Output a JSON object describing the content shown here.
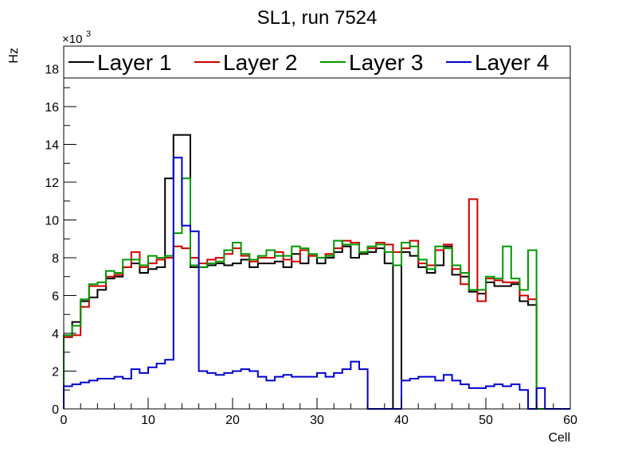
{
  "chart_data": {
    "type": "line",
    "style": "step-histogram",
    "title": "SL1, run 7524",
    "xlabel": "Cell",
    "ylabel": "Hz",
    "y_multiplier": "×10",
    "y_multiplier_exp": "3",
    "xlim": [
      0,
      60
    ],
    "ylim": [
      0,
      19.2
    ],
    "x_ticks": [
      0,
      10,
      20,
      30,
      40,
      50,
      60
    ],
    "y_ticks": [
      0,
      2,
      4,
      6,
      8,
      10,
      12,
      14,
      16,
      18
    ],
    "grid": false,
    "legend_position": "top",
    "bin_edges_start": 0,
    "bin_width": 1,
    "series": [
      {
        "name": "Layer 1",
        "color": "#000000",
        "values": [
          3.8,
          4.6,
          5.7,
          5.9,
          6.3,
          6.9,
          7.0,
          7.5,
          7.7,
          7.2,
          7.4,
          7.5,
          12.2,
          14.5,
          14.5,
          7.5,
          7.5,
          7.6,
          7.7,
          7.6,
          7.7,
          7.9,
          7.5,
          7.7,
          7.7,
          7.8,
          7.5,
          8.2,
          7.7,
          8.1,
          7.7,
          8.0,
          8.3,
          8.6,
          8.0,
          8.2,
          8.3,
          8.5,
          7.7,
          0.0,
          8.3,
          8.1,
          7.5,
          7.2,
          7.6,
          8.6,
          7.1,
          7.0,
          6.2,
          6.1,
          6.7,
          6.5,
          6.5,
          6.6,
          5.7,
          5.5,
          0,
          0,
          0,
          0
        ]
      },
      {
        "name": "Layer 2",
        "color": "#cc0000",
        "values": [
          3.8,
          3.9,
          5.4,
          6.5,
          6.5,
          7.0,
          7.1,
          7.5,
          8.3,
          7.5,
          7.7,
          7.9,
          8.0,
          8.6,
          8.5,
          8.0,
          7.7,
          7.9,
          8.0,
          8.2,
          8.5,
          8.1,
          7.8,
          8.0,
          8.0,
          8.3,
          7.9,
          7.8,
          8.4,
          8.1,
          8.0,
          8.2,
          8.5,
          8.9,
          8.8,
          8.3,
          8.5,
          8.8,
          8.7,
          8.3,
          8.5,
          8.9,
          7.7,
          7.6,
          8.4,
          8.7,
          7.4,
          6.6,
          11.1,
          5.7,
          6.9,
          6.8,
          6.7,
          6.7,
          6.0,
          5.8,
          0,
          0,
          0,
          0
        ]
      },
      {
        "name": "Layer 3",
        "color": "#009900",
        "values": [
          3.9,
          4.4,
          5.8,
          6.6,
          6.7,
          7.3,
          7.2,
          7.9,
          7.9,
          7.6,
          8.1,
          8.0,
          8.1,
          9.3,
          12.2,
          7.6,
          7.5,
          7.7,
          7.8,
          8.4,
          8.8,
          8.2,
          7.9,
          8.1,
          8.4,
          8.1,
          8.1,
          8.6,
          8.5,
          8.2,
          8.0,
          8.1,
          8.9,
          8.7,
          8.7,
          8.3,
          8.6,
          8.7,
          8.3,
          7.6,
          8.8,
          8.6,
          7.9,
          7.4,
          8.6,
          8.5,
          7.6,
          7.2,
          6.3,
          6.3,
          7.0,
          6.9,
          8.6,
          6.9,
          6.3,
          8.4,
          0,
          0,
          0,
          0
        ]
      },
      {
        "name": "Layer 4",
        "color": "#0000cc",
        "values": [
          1.2,
          1.3,
          1.4,
          1.5,
          1.6,
          1.6,
          1.7,
          1.6,
          2.1,
          1.9,
          2.2,
          2.4,
          2.6,
          13.3,
          9.7,
          9.4,
          2.0,
          1.9,
          1.8,
          1.9,
          2.0,
          2.1,
          2.0,
          1.7,
          1.5,
          1.7,
          1.8,
          1.7,
          1.7,
          1.7,
          1.9,
          1.7,
          1.9,
          2.1,
          2.5,
          2.1,
          0.0,
          0.0,
          0.0,
          0.0,
          1.5,
          1.6,
          1.7,
          1.7,
          1.5,
          1.8,
          1.5,
          1.3,
          1.1,
          1.1,
          1.2,
          1.3,
          1.2,
          1.3,
          1.0,
          0.0,
          1.1,
          0,
          0,
          0
        ]
      }
    ]
  }
}
